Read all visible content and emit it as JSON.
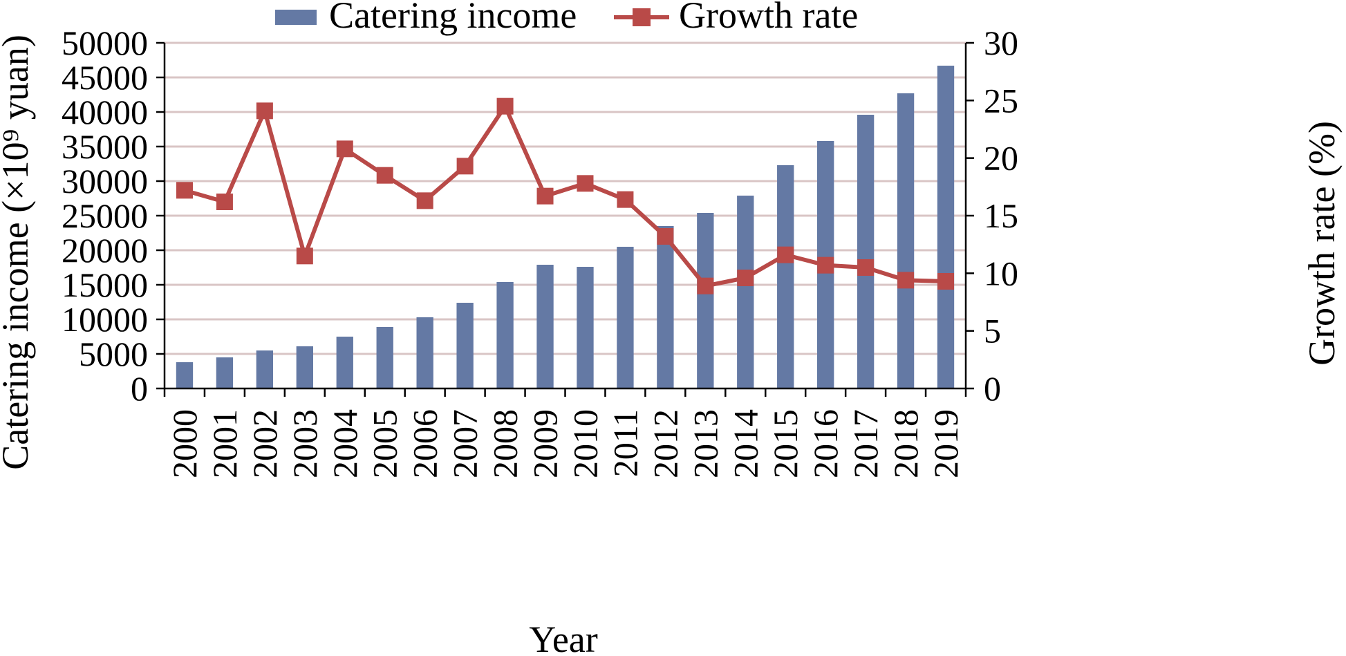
{
  "chart_data": {
    "type": "bar",
    "categories": [
      "2000",
      "2001",
      "2002",
      "2003",
      "2004",
      "2005",
      "2006",
      "2007",
      "2008",
      "2009",
      "2010",
      "2011",
      "2012",
      "2013",
      "2014",
      "2015",
      "2016",
      "2017",
      "2018",
      "2019"
    ],
    "series": [
      {
        "name": "Catering income",
        "type": "bar",
        "axis": "left",
        "color": "#6479a4",
        "values": [
          3800,
          4500,
          5500,
          6100,
          7500,
          8900,
          10300,
          12400,
          15400,
          17900,
          17600,
          20500,
          23500,
          25400,
          27900,
          32300,
          35800,
          39600,
          42700,
          46700
        ]
      },
      {
        "name": "Growth rate",
        "type": "line",
        "axis": "right",
        "color": "#b94a48",
        "marker": "square",
        "values": [
          17.2,
          16.2,
          24.1,
          11.5,
          20.8,
          18.5,
          16.3,
          19.3,
          24.5,
          16.7,
          17.8,
          16.4,
          13.2,
          8.9,
          9.6,
          11.6,
          10.7,
          10.5,
          9.4,
          9.3
        ]
      }
    ],
    "xlabel": "Year",
    "ylabel_left": "Catering income (×10⁹ yuan)",
    "ylabel_right": "Growth rate (%)",
    "ylim_left": [
      0,
      50000
    ],
    "yticks_left": [
      "0",
      "5000",
      "10000",
      "15000",
      "20000",
      "25000",
      "30000",
      "35000",
      "40000",
      "45000",
      "50000"
    ],
    "ylim_right": [
      0,
      30
    ],
    "yticks_right": [
      "0",
      "5",
      "10",
      "15",
      "20",
      "25",
      "30"
    ],
    "grid": true,
    "grid_color": "#d9c5c5",
    "legend_position": "top-center"
  }
}
